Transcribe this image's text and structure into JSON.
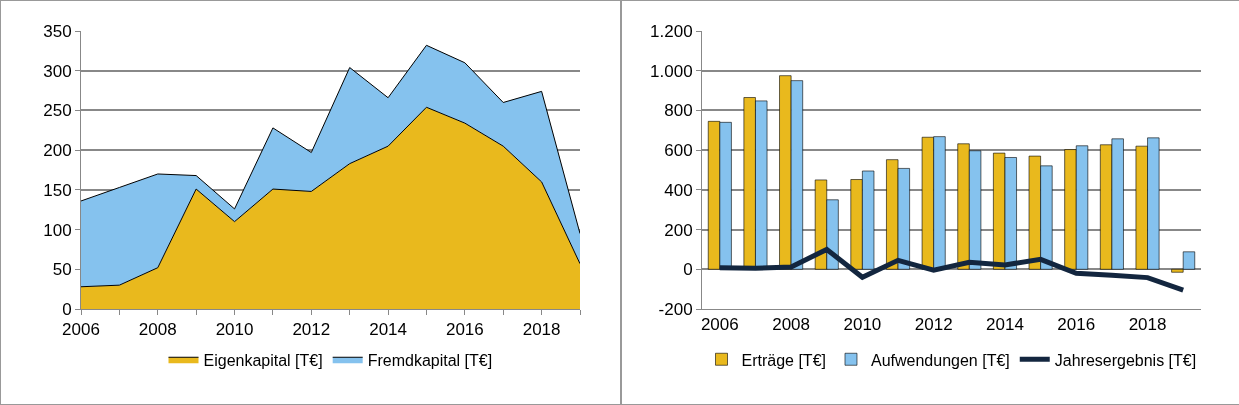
{
  "chart_data": [
    {
      "type": "area",
      "stacked": true,
      "x": [
        2006,
        2007,
        2008,
        2009,
        2010,
        2011,
        2012,
        2013,
        2014,
        2015,
        2016,
        2017,
        2018,
        2019
      ],
      "series": [
        {
          "name": "Eigenkapital [T€]",
          "color": "#e9b91d",
          "values": [
            28,
            30,
            52,
            151,
            110,
            151,
            148,
            183,
            205,
            254,
            234,
            205,
            160,
            57
          ]
        },
        {
          "name": "Fremdkapital [T€]",
          "color": "#85c2ee",
          "values": [
            108,
            123,
            118,
            17,
            16,
            77,
            49,
            121,
            61,
            78,
            76,
            55,
            114,
            38
          ]
        }
      ],
      "xlim": [
        2006,
        2019
      ],
      "xticks": [
        2006,
        {
          "value": 2007,
          "label": null
        },
        2008,
        {
          "value": 2009,
          "label": null
        },
        2010,
        {
          "value": 2011,
          "label": null
        },
        2012,
        {
          "value": 2013,
          "label": null
        },
        2014,
        {
          "value": 2015,
          "label": null
        },
        2016,
        {
          "value": 2017,
          "label": null
        },
        2018,
        {
          "value": 2019,
          "label": null
        }
      ],
      "ylim": [
        0,
        350
      ],
      "yticks": [
        0,
        50,
        100,
        150,
        200,
        250,
        300,
        350
      ],
      "grid": "y",
      "legend": "bottom"
    },
    {
      "type": "bar",
      "categories": [
        "2006",
        null,
        "2008",
        null,
        "2010",
        null,
        "2012",
        null,
        "2014",
        null,
        "2016",
        null,
        "2018",
        null
      ],
      "series": [
        {
          "name": "Erträge [T€]",
          "color": "#e9b91d",
          "values": [
            745,
            865,
            975,
            450,
            452,
            552,
            665,
            632,
            585,
            570,
            603,
            627,
            620,
            -15
          ]
        },
        {
          "name": "Aufwendungen [T€]",
          "color": "#85c2ee",
          "values": [
            740,
            848,
            950,
            350,
            495,
            508,
            668,
            597,
            563,
            521,
            622,
            657,
            662,
            88
          ]
        },
        {
          "name": "Jahresergebnis [T€]",
          "type": "line",
          "color": "#13263f",
          "values": [
            8,
            5,
            12,
            100,
            -40,
            45,
            -5,
            35,
            22,
            50,
            -20,
            -30,
            -42,
            -105
          ]
        }
      ],
      "ylim": [
        -200,
        1200
      ],
      "yticks": [
        -200,
        0,
        200,
        400,
        600,
        800,
        {
          "value": 1000,
          "label": "1.000"
        },
        {
          "value": 1200,
          "label": "1.200"
        }
      ],
      "grid": "y",
      "legend": "bottom",
      "marker": "none"
    }
  ]
}
